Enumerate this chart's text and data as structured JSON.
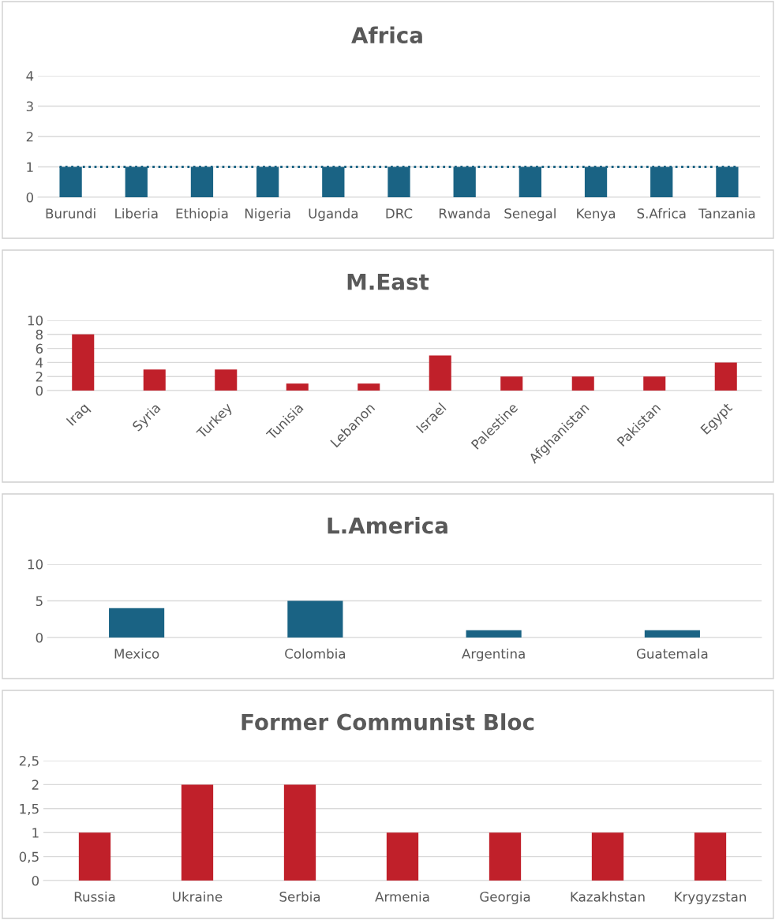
{
  "chart_data": [
    {
      "type": "bar",
      "title": "Africa",
      "categories": [
        "Burundi",
        "Liberia",
        "Ethiopia",
        "Nigeria",
        "Uganda",
        "DRC",
        "Rwanda",
        "Senegal",
        "Kenya",
        "S.Africa",
        "Tanzania"
      ],
      "values": [
        1,
        1,
        1,
        1,
        1,
        1,
        1,
        1,
        1,
        1,
        1
      ],
      "color": "#1a6384",
      "ylim": [
        0,
        4
      ],
      "yticks": [
        0,
        1,
        2,
        3,
        4
      ],
      "grid": "y",
      "ref_lines": [
        {
          "axis": "y",
          "value": 1,
          "color": "#1a6384",
          "line_style": "dotted"
        }
      ]
    },
    {
      "type": "bar",
      "title": "M.East",
      "categories": [
        "Iraq",
        "Syria",
        "Turkey",
        "Tunisia",
        "Lebanon",
        "Israel",
        "Palestine",
        "Afghanistan",
        "Pakistan",
        "Egypt"
      ],
      "values": [
        8,
        3,
        3,
        1,
        1,
        5,
        2,
        2,
        2,
        4
      ],
      "color": "#c0202a",
      "ylim": [
        0,
        10
      ],
      "yticks": [
        0,
        2,
        4,
        6,
        8,
        10
      ],
      "grid": "y"
    },
    {
      "type": "bar",
      "title": "L.America",
      "categories": [
        "Mexico",
        "Colombia",
        "Argentina",
        "Guatemala"
      ],
      "values": [
        4,
        5,
        1,
        1
      ],
      "color": "#1a6384",
      "ylim": [
        0,
        10
      ],
      "yticks": [
        0,
        5,
        10
      ],
      "grid": "y"
    },
    {
      "type": "bar",
      "title": "Former Communist Bloc",
      "categories": [
        "Russia",
        "Ukraine",
        "Serbia",
        "Armenia",
        "Georgia",
        "Kazakhstan",
        "Krygyzstan"
      ],
      "values": [
        1,
        2,
        2,
        1,
        1,
        1,
        1
      ],
      "color": "#c0202a",
      "ylim": [
        0,
        2.5
      ],
      "yticks": [
        0,
        {
          "value": 0.5,
          "label": "0,5"
        },
        1,
        {
          "value": 1.5,
          "label": "1,5"
        },
        2,
        {
          "value": 2.5,
          "label": "2,5"
        }
      ],
      "grid": "y"
    }
  ]
}
